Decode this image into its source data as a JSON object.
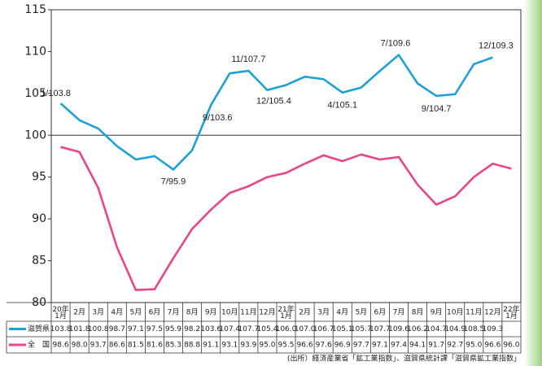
{
  "chart_data": {
    "type": "line",
    "categories": [
      "20年\n1月",
      "2月",
      "3月",
      "4月",
      "5月",
      "6月",
      "7月",
      "8月",
      "9月",
      "10月",
      "11月",
      "12月",
      "21年\n1月",
      "2月",
      "3月",
      "4月",
      "5月",
      "6月",
      "7月",
      "8月",
      "9月",
      "10月",
      "11月",
      "12月",
      "22年\n1月"
    ],
    "series": [
      {
        "name": "滋賀県",
        "color": "#1ea0d8",
        "values": [
          103.8,
          101.8,
          100.8,
          98.7,
          97.1,
          97.5,
          95.9,
          98.2,
          103.6,
          107.4,
          107.7,
          105.4,
          106.0,
          107.0,
          106.7,
          105.1,
          105.7,
          107.7,
          109.6,
          106.2,
          104.7,
          104.9,
          108.5,
          109.3,
          null
        ]
      },
      {
        "name": "全　国",
        "color": "#e8458b",
        "values": [
          98.6,
          98.0,
          93.7,
          86.6,
          81.5,
          81.6,
          85.3,
          88.8,
          91.1,
          93.1,
          93.9,
          95.0,
          95.5,
          96.6,
          97.6,
          96.9,
          97.7,
          97.1,
          97.4,
          94.1,
          91.7,
          92.7,
          95.0,
          96.6,
          96.0
        ]
      }
    ],
    "value_labels_table": [
      [
        "103.8",
        "101.8",
        "100.8",
        "98.7",
        "97.1",
        "97.5",
        "95.9",
        "98.2",
        "103.6",
        "107.4",
        "107.7",
        "105.4",
        "106.0",
        "107.0",
        "106.7",
        "105.1",
        "105.7",
        "107.7",
        "109.6",
        "106.2",
        "104.7",
        "104.9",
        "108.5",
        "109.3",
        null
      ],
      [
        "98.6",
        "98.0",
        "93.7",
        "86.6",
        "81.5",
        "81.6",
        "85.3",
        "88.8",
        "91.1",
        "93.1",
        "93.9",
        "95.0",
        "95.5",
        "96.6",
        "97.6",
        "96.9",
        "97.7",
        "97.1",
        "97.4",
        "94.1",
        "91.7",
        "92.7",
        "95.0",
        "96.6",
        "96.0"
      ]
    ],
    "ylim": [
      80,
      115
    ],
    "yticks": [
      80,
      85,
      90,
      95,
      100,
      105,
      110,
      115
    ],
    "hline": 100,
    "annotations": [
      "1/103.8",
      "11/107.7",
      "12/105.4",
      "9/103.6",
      "7/95.9",
      "4/105.1",
      "7/109.6",
      "9/104.7",
      "12/109.3"
    ],
    "source": "(出所）経済産業省「鉱工業指数」、滋賀県統計課「滋賀県鉱工業指数」"
  }
}
